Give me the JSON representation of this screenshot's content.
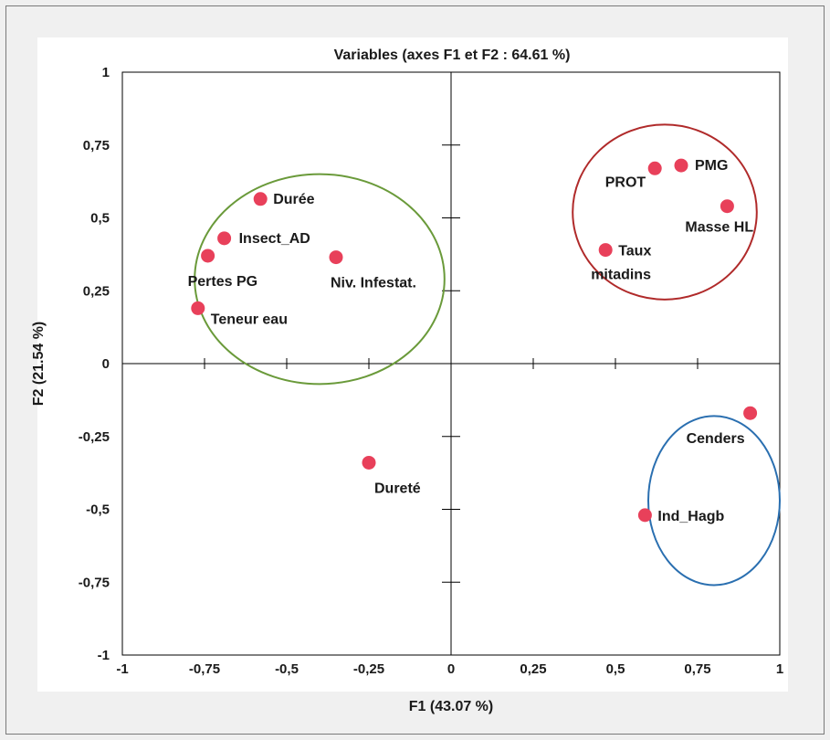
{
  "chart_data": {
    "type": "scatter",
    "title": "Variables (axes F1 et F2 : 64.61 %)",
    "xlabel": "F1 (43.07 %)",
    "ylabel": "F2 (21.54 %)",
    "xlim": [
      -1,
      1
    ],
    "ylim": [
      -1,
      1
    ],
    "x_ticks": [
      "-1",
      "-0,75",
      "-0,5",
      "-0,25",
      "0",
      "0,25",
      "0,5",
      "0,75",
      "1"
    ],
    "y_ticks": [
      "1",
      "0,75",
      "0,5",
      "0,25",
      "0",
      "-0,25",
      "-0,5",
      "-0,75",
      "-1"
    ],
    "grid": false,
    "point_color": "#e8405a",
    "points": [
      {
        "label": "Durée",
        "x": -0.58,
        "y": 0.565
      },
      {
        "label": "Insect_AD",
        "x": -0.69,
        "y": 0.43
      },
      {
        "label": "Pertes PG",
        "x": -0.74,
        "y": 0.37
      },
      {
        "label": "Niv. Infestat.",
        "x": -0.35,
        "y": 0.365
      },
      {
        "label": "Teneur eau",
        "x": -0.77,
        "y": 0.19
      },
      {
        "label": "PROT",
        "x": 0.62,
        "y": 0.67
      },
      {
        "label": "PMG",
        "x": 0.7,
        "y": 0.68
      },
      {
        "label": "Masse HL",
        "x": 0.84,
        "y": 0.54
      },
      {
        "label": "Taux",
        "x": 0.47,
        "y": 0.39
      },
      {
        "label": "mitadins",
        "x": 0.47,
        "y": 0.39
      },
      {
        "label": "Cenders",
        "x": 0.91,
        "y": -0.17
      },
      {
        "label": "Ind_Hagb",
        "x": 0.59,
        "y": -0.52
      },
      {
        "label": "Dureté",
        "x": -0.25,
        "y": -0.34
      }
    ],
    "groups": [
      {
        "color": "#6a9a3a",
        "cx": -0.4,
        "cy": 0.29,
        "rx": 0.38,
        "ry": 0.36
      },
      {
        "color": "#b02a2a",
        "cx": 0.65,
        "cy": 0.52,
        "rx": 0.28,
        "ry": 0.3
      },
      {
        "color": "#2a6fb0",
        "cx": 0.8,
        "cy": -0.47,
        "rx": 0.2,
        "ry": 0.29
      }
    ]
  }
}
